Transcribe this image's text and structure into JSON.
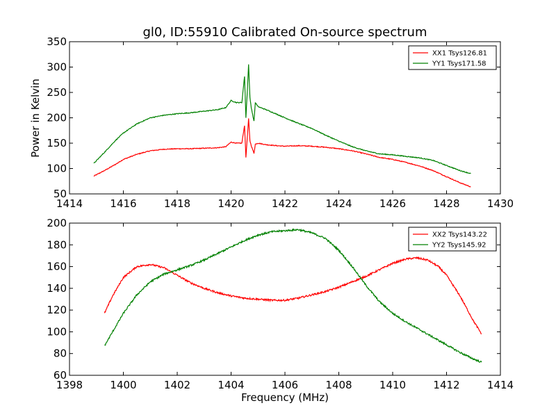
{
  "figure": {
    "title": "gl0, ID:55910 Calibrated On-source spectrum",
    "xlabel": "Frequency (MHz)"
  },
  "chart_data": [
    {
      "type": "line",
      "title": "gl0, ID:55910 Calibrated On-source spectrum",
      "xlabel": "",
      "ylabel": "Power in Kelvin",
      "xlim": [
        1414,
        1430
      ],
      "ylim": [
        50,
        350
      ],
      "xticks": [
        1414,
        1416,
        1418,
        1420,
        1422,
        1424,
        1426,
        1428,
        1430
      ],
      "yticks": [
        50,
        100,
        150,
        200,
        250,
        300,
        350
      ],
      "legend_position": "top-right",
      "grid": false,
      "series": [
        {
          "name": "XX1 Tsys126.81",
          "color": "#ff0000",
          "x": [
            1414.9,
            1415.3,
            1415.7,
            1416.0,
            1416.5,
            1417.0,
            1417.5,
            1418.0,
            1418.5,
            1419.0,
            1419.5,
            1419.8,
            1420.0,
            1420.2,
            1420.4,
            1420.5,
            1420.55,
            1420.6,
            1420.65,
            1420.7,
            1420.75,
            1420.85,
            1420.9,
            1421.0,
            1421.3,
            1421.7,
            1422.0,
            1422.5,
            1423.0,
            1423.5,
            1424.0,
            1424.5,
            1425.0,
            1425.5,
            1426.0,
            1426.5,
            1427.0,
            1427.5,
            1428.0,
            1428.5,
            1428.9
          ],
          "y": [
            85,
            96,
            108,
            118,
            128,
            135,
            138,
            139,
            139,
            140,
            141,
            143,
            152,
            150,
            150,
            185,
            122,
            160,
            198,
            155,
            145,
            130,
            148,
            150,
            147,
            145,
            144,
            145,
            144,
            142,
            139,
            135,
            129,
            122,
            118,
            112,
            105,
            96,
            84,
            72,
            64
          ]
        },
        {
          "name": "YY1 Tsys171.58",
          "color": "#008000",
          "x": [
            1414.9,
            1415.3,
            1415.7,
            1416.0,
            1416.5,
            1417.0,
            1417.5,
            1418.0,
            1418.5,
            1419.0,
            1419.5,
            1419.8,
            1420.0,
            1420.2,
            1420.4,
            1420.5,
            1420.55,
            1420.6,
            1420.65,
            1420.7,
            1420.75,
            1420.85,
            1420.9,
            1421.0,
            1421.3,
            1421.7,
            1422.0,
            1422.5,
            1423.0,
            1423.5,
            1424.0,
            1424.5,
            1425.0,
            1425.5,
            1426.0,
            1426.5,
            1427.0,
            1427.5,
            1428.0,
            1428.5,
            1428.9
          ],
          "y": [
            110,
            132,
            155,
            170,
            188,
            200,
            205,
            208,
            210,
            213,
            216,
            220,
            234,
            230,
            230,
            282,
            200,
            250,
            305,
            240,
            220,
            193,
            230,
            222,
            216,
            207,
            200,
            189,
            179,
            166,
            154,
            143,
            135,
            129,
            127,
            124,
            121,
            116,
            106,
            96,
            90
          ]
        }
      ]
    },
    {
      "type": "line",
      "title": "",
      "xlabel": "Frequency (MHz)",
      "ylabel": "",
      "xlim": [
        1398,
        1414
      ],
      "ylim": [
        60,
        200
      ],
      "xticks": [
        1398,
        1400,
        1402,
        1404,
        1406,
        1408,
        1410,
        1412,
        1414
      ],
      "yticks": [
        60,
        80,
        100,
        120,
        140,
        160,
        180,
        200
      ],
      "legend_position": "top-right",
      "grid": false,
      "series": [
        {
          "name": "XX2 Tsys143.22",
          "color": "#ff0000",
          "x": [
            1399.3,
            1399.6,
            1400.0,
            1400.5,
            1401.0,
            1401.5,
            1402.0,
            1402.5,
            1403.0,
            1403.5,
            1404.0,
            1404.5,
            1405.0,
            1405.5,
            1406.0,
            1406.5,
            1407.0,
            1407.5,
            1408.0,
            1408.5,
            1409.0,
            1409.5,
            1410.0,
            1410.5,
            1410.9,
            1411.3,
            1411.7,
            1412.0,
            1412.5,
            1413.0,
            1413.3
          ],
          "y": [
            117,
            133,
            150,
            160,
            162,
            159,
            152,
            145,
            140,
            136,
            133,
            131,
            130,
            129,
            129,
            131,
            134,
            137,
            141,
            146,
            151,
            157,
            163,
            167,
            168,
            166,
            160,
            152,
            133,
            110,
            98
          ]
        },
        {
          "name": "YY2 Tsys145.92",
          "color": "#008000",
          "x": [
            1399.3,
            1399.6,
            1400.0,
            1400.5,
            1401.0,
            1401.5,
            1402.0,
            1402.5,
            1403.0,
            1403.5,
            1404.0,
            1404.5,
            1405.0,
            1405.5,
            1406.0,
            1406.5,
            1407.0,
            1407.5,
            1408.0,
            1408.5,
            1409.0,
            1409.5,
            1410.0,
            1410.5,
            1411.0,
            1411.5,
            1412.0,
            1412.5,
            1413.0,
            1413.3
          ],
          "y": [
            87,
            100,
            117,
            134,
            146,
            153,
            157,
            161,
            166,
            172,
            178,
            184,
            189,
            192,
            193,
            194,
            191,
            186,
            175,
            160,
            143,
            128,
            117,
            109,
            102,
            95,
            88,
            81,
            75,
            72
          ]
        }
      ]
    }
  ]
}
